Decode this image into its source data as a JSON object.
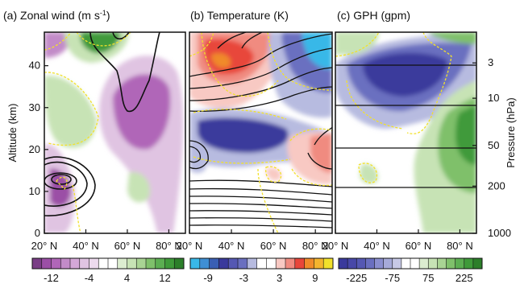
{
  "colors": {
    "purple_strong": "#9b4fa6",
    "purple_mid": "#c28bc8",
    "purple_light": "#e0c4e2",
    "green_strong": "#3f9a3a",
    "green_mid": "#7fc06b",
    "green_light": "#c7e3b5",
    "blue_strong": "#3a3a9c",
    "blue_mid": "#6a6fc0",
    "blue_light": "#b7bbe0",
    "cyan": "#39b8e8",
    "red_strong": "#e8463a",
    "red_mid": "#f08b80",
    "red_light": "#f8c9c3",
    "orange": "#f08a2a",
    "yellow": "#f2e12b",
    "contour_black": "#111111",
    "contour_yellow": "#f2e12b"
  },
  "chart_data": [
    {
      "type": "heatmap",
      "panel": "(a)",
      "title": "Zonal wind",
      "units": "(m s",
      "units_sup": "-1",
      "units_close": ")",
      "xlabel": "",
      "ylabel": "Altitude (km)",
      "x_ticks": [
        "20° N",
        "40° N",
        "60° N",
        "80° N"
      ],
      "x_values": [
        20,
        40,
        60,
        80
      ],
      "y_ticks": [
        "0",
        "10",
        "20",
        "30",
        "40"
      ],
      "y_values": [
        0,
        10,
        20,
        30,
        40
      ],
      "xlim": [
        20,
        88
      ],
      "ylim": [
        0,
        48
      ],
      "colorbar": {
        "ticks": [
          "-12",
          "-4",
          "4",
          "12"
        ],
        "tick_values": [
          -12,
          -4,
          4,
          12
        ],
        "range": [
          -16,
          16
        ]
      },
      "features": [
        {
          "kind": "fill",
          "sign": "negative",
          "center": [
            67,
            30
          ],
          "level": -12
        },
        {
          "kind": "fill",
          "sign": "negative",
          "center": [
            25,
            12
          ],
          "level": -8
        },
        {
          "kind": "fill",
          "sign": "positive",
          "center": [
            42,
            43
          ],
          "level": 12
        },
        {
          "kind": "fill",
          "sign": "positive",
          "center": [
            35,
            28
          ],
          "level": 4
        }
      ]
    },
    {
      "type": "heatmap",
      "panel": "(b)",
      "title": "Temperature",
      "units": "(K)",
      "xlabel": "",
      "ylabel": "",
      "x_ticks": [
        "20° N",
        "40° N",
        "60° N",
        "80° N"
      ],
      "x_values": [
        20,
        40,
        60,
        80
      ],
      "xlim": [
        20,
        88
      ],
      "ylim": [
        0,
        48
      ],
      "colorbar": {
        "ticks": [
          "-9",
          "-3",
          "3",
          "9"
        ],
        "tick_values": [
          -9,
          -3,
          3,
          9
        ],
        "range": [
          -12,
          12
        ]
      },
      "features": [
        {
          "kind": "fill",
          "sign": "positive",
          "center": [
            35,
            41
          ],
          "level": 9
        },
        {
          "kind": "fill",
          "sign": "negative",
          "center": [
            78,
            42
          ],
          "level": -9
        },
        {
          "kind": "fill",
          "sign": "negative",
          "center": [
            45,
            26
          ],
          "level": -6
        },
        {
          "kind": "fill",
          "sign": "positive",
          "center": [
            82,
            19
          ],
          "level": 3
        }
      ]
    },
    {
      "type": "heatmap",
      "panel": "(c)",
      "title": "GPH",
      "units": "(gpm)",
      "xlabel": "",
      "ylabel": "Pressure (hPa)",
      "x_ticks": [
        "20° N",
        "40° N",
        "60° N",
        "80° N"
      ],
      "x_values": [
        20,
        40,
        60,
        80
      ],
      "xlim": [
        20,
        88
      ],
      "ylim": [
        0,
        48
      ],
      "y_right_ticks": [
        "3",
        "10",
        "50",
        "200",
        "1000"
      ],
      "y_right_values": [
        3,
        10,
        50,
        200,
        1000
      ],
      "colorbar": {
        "ticks": [
          "-225",
          "-75",
          "75",
          "225"
        ],
        "tick_values": [
          -225,
          -75,
          75,
          225
        ],
        "range": [
          -300,
          300
        ]
      },
      "features": [
        {
          "kind": "fill",
          "sign": "negative",
          "center": [
            50,
            40
          ],
          "level": -225
        },
        {
          "kind": "fill",
          "sign": "positive",
          "center": [
            80,
            28
          ],
          "level": 225
        },
        {
          "kind": "fill",
          "sign": "positive",
          "center": [
            45,
            44
          ],
          "level": 75
        }
      ]
    }
  ]
}
